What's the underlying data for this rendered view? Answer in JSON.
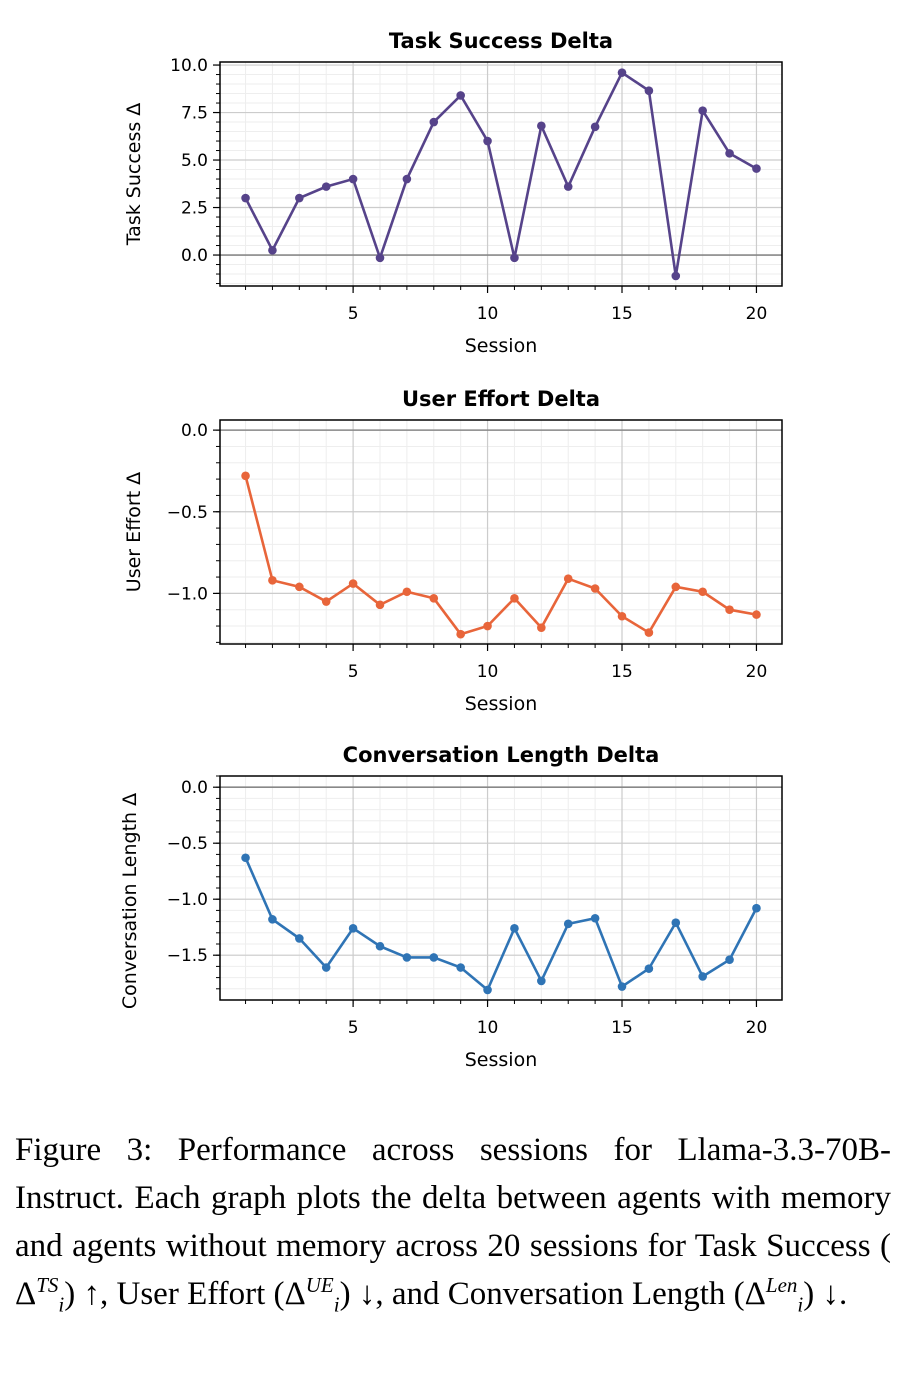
{
  "chart_data": [
    {
      "type": "line",
      "title": "Task Success Delta",
      "xlabel": "Session",
      "ylabel": "Task Success Δ",
      "x": [
        1,
        2,
        3,
        4,
        5,
        6,
        7,
        8,
        9,
        10,
        11,
        12,
        13,
        14,
        15,
        16,
        17,
        18,
        19,
        20
      ],
      "values": [
        3.0,
        0.25,
        3.0,
        3.6,
        4.0,
        -0.15,
        4.0,
        7.0,
        8.4,
        6.0,
        -0.15,
        6.8,
        3.6,
        6.75,
        9.6,
        8.65,
        -1.1,
        7.6,
        5.35,
        4.55
      ],
      "xlim": [
        0.05,
        20.95
      ],
      "ylim": [
        -1.63,
        10.16
      ],
      "xticks": [
        "5",
        "10",
        "15",
        "20"
      ],
      "yticks": [
        "0.0",
        "2.5",
        "5.0",
        "7.5",
        "10.0"
      ],
      "ytick_values": [
        0,
        2.5,
        5,
        7.5,
        10
      ],
      "yminor_step": 0.5,
      "grid": true,
      "color": "#56438a"
    },
    {
      "type": "line",
      "title": "User Effort Delta",
      "xlabel": "Session",
      "ylabel": "User Effort Δ",
      "x": [
        1,
        2,
        3,
        4,
        5,
        6,
        7,
        8,
        9,
        10,
        11,
        12,
        13,
        14,
        15,
        16,
        17,
        18,
        19,
        20
      ],
      "values": [
        -0.28,
        -0.92,
        -0.96,
        -1.05,
        -0.94,
        -1.07,
        -0.99,
        -1.03,
        -1.25,
        -1.2,
        -1.03,
        -1.21,
        -0.91,
        -0.97,
        -1.14,
        -1.24,
        -0.96,
        -0.99,
        -1.1,
        -1.13
      ],
      "xlim": [
        0.05,
        20.95
      ],
      "ylim": [
        -1.31,
        0.062
      ],
      "xticks": [
        "5",
        "10",
        "15",
        "20"
      ],
      "yticks": [
        "−1.0",
        "−0.5",
        "0.0"
      ],
      "ytick_values": [
        -1,
        -0.5,
        0
      ],
      "yminor_step": 0.1,
      "grid": true,
      "color": "#e8653a"
    },
    {
      "type": "line",
      "title": "Conversation Length Delta",
      "xlabel": "Session",
      "ylabel": "Conversation Length Δ",
      "x": [
        1,
        2,
        3,
        4,
        5,
        6,
        7,
        8,
        9,
        10,
        11,
        12,
        13,
        14,
        15,
        16,
        17,
        18,
        19,
        20
      ],
      "values": [
        -0.63,
        -1.18,
        -1.35,
        -1.61,
        -1.26,
        -1.42,
        -1.52,
        -1.52,
        -1.61,
        -1.81,
        -1.26,
        -1.73,
        -1.22,
        -1.17,
        -1.78,
        -1.62,
        -1.21,
        -1.69,
        -1.54,
        -1.08
      ],
      "xlim": [
        0.05,
        20.95
      ],
      "ylim": [
        -1.9,
        0.1
      ],
      "xticks": [
        "5",
        "10",
        "15",
        "20"
      ],
      "yticks": [
        "−1.5",
        "−1.0",
        "−0.5",
        "0.0"
      ],
      "ytick_values": [
        -1.5,
        -1,
        -0.5,
        0
      ],
      "yminor_step": 0.1,
      "grid": true,
      "color": "#2f74b5"
    }
  ],
  "caption": {
    "p1": "Figure 3: Performance across sessions for Llama-3.3-70B-Instruct. Each graph plots the delta between agents with memory and agents without memory across 20 sessions for Task Success (",
    "ts_sup": "TS",
    "p2": ") ↑, User Effort (",
    "ue_sup": "UE",
    "p3": ") ↓, and Conversation Length (",
    "len_sup": "Len",
    "p4": ") ↓.",
    "delta": "Δ",
    "sub": "i"
  }
}
